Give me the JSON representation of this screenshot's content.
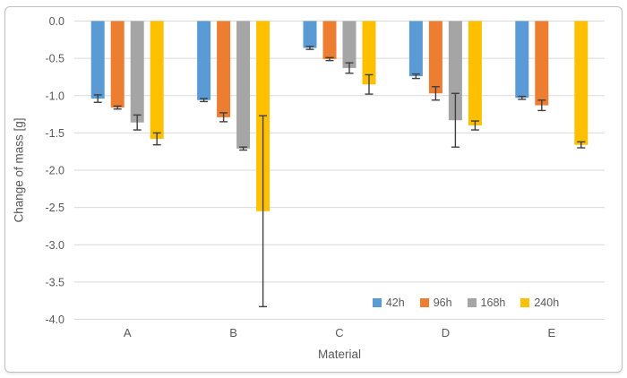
{
  "chart_data": {
    "type": "bar",
    "orientation": "vertical-negative",
    "xlabel": "Material",
    "ylabel": "Change of mass [g]",
    "categories": [
      "A",
      "B",
      "C",
      "D",
      "E"
    ],
    "series": [
      {
        "name": "42h",
        "color": "#5B9BD5",
        "values": [
          -1.04,
          -1.06,
          -0.36,
          -0.74,
          -1.03
        ],
        "errors": [
          0.05,
          0.02,
          0.02,
          0.03,
          0.02
        ]
      },
      {
        "name": "96h",
        "color": "#ED7D31",
        "values": [
          -1.16,
          -1.29,
          -0.51,
          -0.97,
          -1.13
        ],
        "errors": [
          0.02,
          0.06,
          0.02,
          0.09,
          0.07
        ]
      },
      {
        "name": "168h",
        "color": "#A5A5A5",
        "values": [
          -1.36,
          -1.71,
          -0.63,
          -1.33,
          null
        ],
        "errors": [
          0.1,
          0.02,
          0.07,
          0.36,
          null
        ]
      },
      {
        "name": "240h",
        "color": "#FFC000",
        "values": [
          -1.58,
          -2.55,
          -0.85,
          -1.4,
          -1.66
        ],
        "errors": [
          0.08,
          1.28,
          0.13,
          0.06,
          0.04
        ]
      }
    ],
    "ylim": [
      -4.0,
      0.0
    ],
    "ytick_values": [
      0,
      -0.5,
      -1.0,
      -1.5,
      -2.0,
      -2.5,
      -3.0,
      -3.5,
      -4.0
    ],
    "ytick_labels": [
      "0.0",
      "-0.5",
      "-1.0",
      "-1.5",
      "-2.0",
      "-2.5",
      "-3.0",
      "-3.5",
      "-4.0"
    ],
    "grid": true,
    "legend_position": "inside-bottom-center-right",
    "gridline_color": "#D9D9D9",
    "text_color": "#595959",
    "errorbar_color": "#3F3F3F",
    "border_color": "#BFBFBF"
  }
}
